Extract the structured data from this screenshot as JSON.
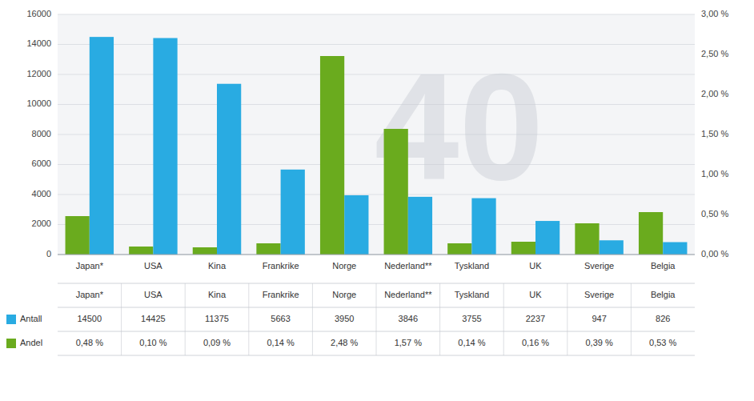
{
  "chart_data": {
    "type": "bar",
    "categories": [
      "Japan*",
      "USA",
      "Kina",
      "Frankrike",
      "Norge",
      "Nederland**",
      "Tyskland",
      "UK",
      "Sverige",
      "Belgia"
    ],
    "series": [
      {
        "name": "Andel",
        "color": "#6AAB1E",
        "axis": "y2",
        "values": [
          0.48,
          0.1,
          0.09,
          0.14,
          2.48,
          1.57,
          0.14,
          0.16,
          0.39,
          0.53
        ],
        "value_labels": [
          "0,48 %",
          "0,10 %",
          "0,09 %",
          "0,14 %",
          "2,48 %",
          "1,57 %",
          "0,14 %",
          "0,16 %",
          "0,39 %",
          "0,53 %"
        ]
      },
      {
        "name": "Antall",
        "color": "#29ABE2",
        "values": [
          14500,
          14425,
          11375,
          5663,
          3950,
          3846,
          3755,
          2237,
          947,
          826
        ]
      }
    ],
    "ylim": [
      0,
      16000
    ],
    "yticks": [
      0,
      2000,
      4000,
      6000,
      8000,
      10000,
      12000,
      14000,
      16000
    ],
    "y2lim": [
      0,
      3.0
    ],
    "y2ticks": [
      {
        "value": 0.0,
        "label": "0,00 %"
      },
      {
        "value": 0.5,
        "label": "0,50 %"
      },
      {
        "value": 1.0,
        "label": "1,00 %"
      },
      {
        "value": 1.5,
        "label": "1,50 %"
      },
      {
        "value": 2.0,
        "label": "2,00 %"
      },
      {
        "value": 2.5,
        "label": "2,50 %"
      },
      {
        "value": 3.0,
        "label": "3,00 %"
      }
    ],
    "grid": true,
    "annotations": [
      "40"
    ]
  }
}
